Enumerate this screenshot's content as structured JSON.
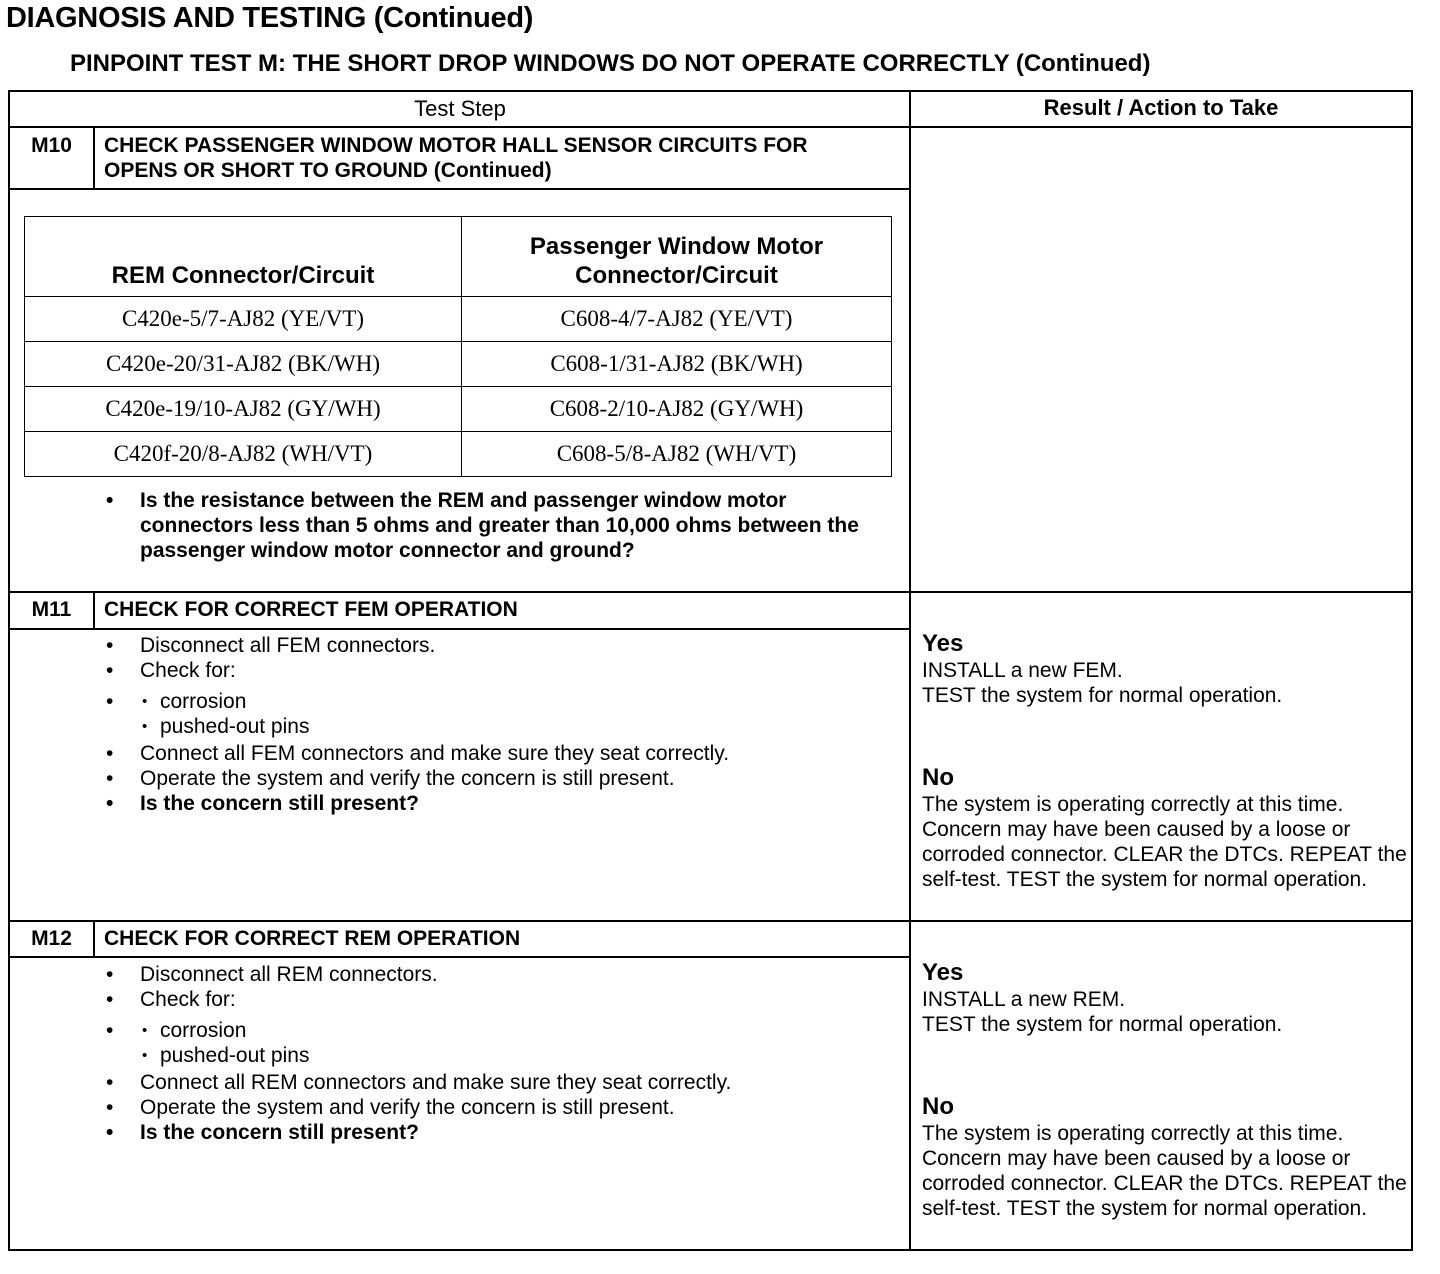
{
  "title": "DIAGNOSIS AND TESTING (Continued)",
  "subtitle": "PINPOINT TEST M: THE SHORT DROP WINDOWS DO NOT OPERATE CORRECTLY (Continued)",
  "columns": {
    "test_step": "Test Step",
    "result": "Result / Action to Take"
  },
  "m10": {
    "number": "M10",
    "title": "CHECK PASSENGER WINDOW MOTOR HALL SENSOR CIRCUITS FOR OPENS OR SHORT TO GROUND (Continued)",
    "table": {
      "headers": [
        "REM Connector/Circuit",
        "Passenger Window Motor Connector/Circuit"
      ],
      "rows": [
        [
          "C420e-5/7-AJ82 (YE/VT)",
          "C608-4/7-AJ82 (YE/VT)"
        ],
        [
          "C420e-20/31-AJ82 (BK/WH)",
          "C608-1/31-AJ82 (BK/WH)"
        ],
        [
          "C420e-19/10-AJ82 (GY/WH)",
          "C608-2/10-AJ82 (GY/WH)"
        ],
        [
          "C420f-20/8-AJ82 (WH/VT)",
          "C608-5/8-AJ82 (WH/VT)"
        ]
      ]
    },
    "question": "Is the resistance between the REM and passenger window motor connectors less than 5 ohms and greater than 10,000 ohms between the passenger window motor connector and ground?"
  },
  "m11": {
    "number": "M11",
    "title": "CHECK FOR CORRECT FEM OPERATION",
    "steps": [
      "Disconnect all FEM connectors.",
      "Check for:"
    ],
    "sub": [
      "corrosion",
      "pushed-out pins"
    ],
    "steps2": [
      "Connect all FEM connectors and make sure they seat correctly.",
      "Operate the system and verify the concern is still present."
    ],
    "question": "Is the concern still present?",
    "yes_label": "Yes",
    "yes_text": "INSTALL a new FEM.",
    "yes_text2": "TEST the system for normal operation.",
    "no_label": "No",
    "no_text": "The system is operating correctly at this time. Concern may have been caused by a loose or corroded connector. CLEAR the DTCs. REPEAT the self-test. TEST the system for normal operation."
  },
  "m12": {
    "number": "M12",
    "title": "CHECK FOR CORRECT REM OPERATION",
    "steps": [
      "Disconnect all REM connectors.",
      "Check for:"
    ],
    "sub": [
      "corrosion",
      "pushed-out pins"
    ],
    "steps2": [
      "Connect all REM connectors and make sure they seat correctly.",
      "Operate the system and verify the concern is still present."
    ],
    "question": "Is the concern still present?",
    "yes_label": "Yes",
    "yes_text": "INSTALL a new REM.",
    "yes_text2": "TEST the system for normal operation.",
    "no_label": "No",
    "no_text": "The system is operating correctly at this time. Concern may have been caused by a loose or corroded connector. CLEAR the DTCs. REPEAT the self-test. TEST the system for normal operation."
  }
}
